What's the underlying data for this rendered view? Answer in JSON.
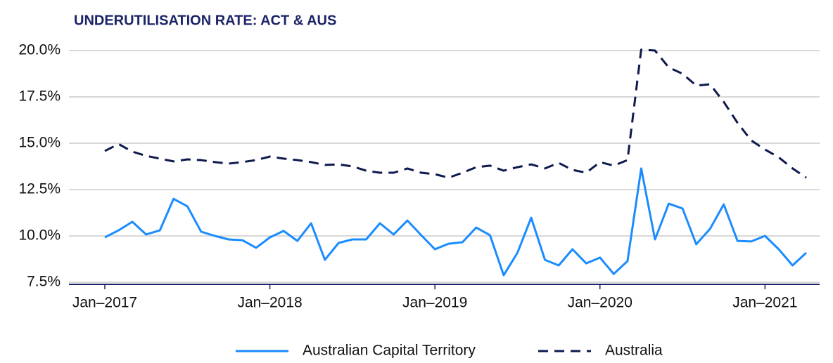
{
  "chart_data": {
    "type": "line",
    "title": "UNDERUTILISATION RATE: ACT & AUS",
    "categories": [
      "Jan–2017",
      null,
      null,
      null,
      null,
      null,
      null,
      null,
      null,
      null,
      null,
      null,
      "Jan–2018",
      null,
      null,
      null,
      null,
      null,
      null,
      null,
      null,
      null,
      null,
      null,
      "Jan–2019",
      null,
      null,
      null,
      null,
      null,
      null,
      null,
      null,
      null,
      null,
      null,
      "Jan–2020",
      null,
      null,
      null,
      null,
      null,
      null,
      null,
      null,
      null,
      null,
      null,
      "Jan–2021",
      null,
      null,
      null
    ],
    "series": [
      {
        "name": "Australian Capital Territory",
        "color": "#1a8cff",
        "dash": false,
        "values": [
          9.92,
          10.3,
          10.76,
          10.08,
          10.3,
          12.0,
          11.6,
          10.23,
          10.0,
          9.81,
          9.77,
          9.36,
          9.92,
          10.27,
          9.73,
          10.68,
          8.71,
          9.62,
          9.81,
          9.81,
          10.68,
          10.08,
          10.83,
          10.04,
          9.28,
          9.58,
          9.66,
          10.45,
          10.04,
          7.88,
          9.09,
          10.98,
          8.71,
          8.41,
          9.28,
          8.52,
          8.83,
          7.95,
          8.64,
          13.64,
          9.81,
          11.74,
          11.48,
          9.55,
          10.38,
          11.7,
          9.73,
          9.7,
          10.0,
          9.28,
          8.41,
          9.09
        ]
      },
      {
        "name": "Australia",
        "color": "#0d1a4d",
        "dash": true,
        "values": [
          14.58,
          14.96,
          14.55,
          14.32,
          14.17,
          14.02,
          14.13,
          14.09,
          13.98,
          13.9,
          13.98,
          14.09,
          14.28,
          14.17,
          14.09,
          13.98,
          13.83,
          13.86,
          13.75,
          13.52,
          13.41,
          13.41,
          13.64,
          13.41,
          13.33,
          13.14,
          13.41,
          13.71,
          13.79,
          13.52,
          13.71,
          13.86,
          13.64,
          13.94,
          13.56,
          13.41,
          13.98,
          13.79,
          14.09,
          20.05,
          20.0,
          19.09,
          18.75,
          18.11,
          18.18,
          17.23,
          16.1,
          15.15,
          14.66,
          14.24,
          13.64,
          13.14
        ]
      }
    ],
    "ylim": [
      7.5,
      20
    ],
    "yticks": [
      {
        "value": 7.5,
        "label": "7.5%"
      },
      {
        "value": 10,
        "label": "10.0%"
      },
      {
        "value": 12.5,
        "label": "12.5%"
      },
      {
        "value": 15,
        "label": "15.0%"
      },
      {
        "value": 17.5,
        "label": "17.5%"
      },
      {
        "value": 20,
        "label": "20.0%"
      }
    ],
    "grid": true,
    "legend": "bottom"
  }
}
